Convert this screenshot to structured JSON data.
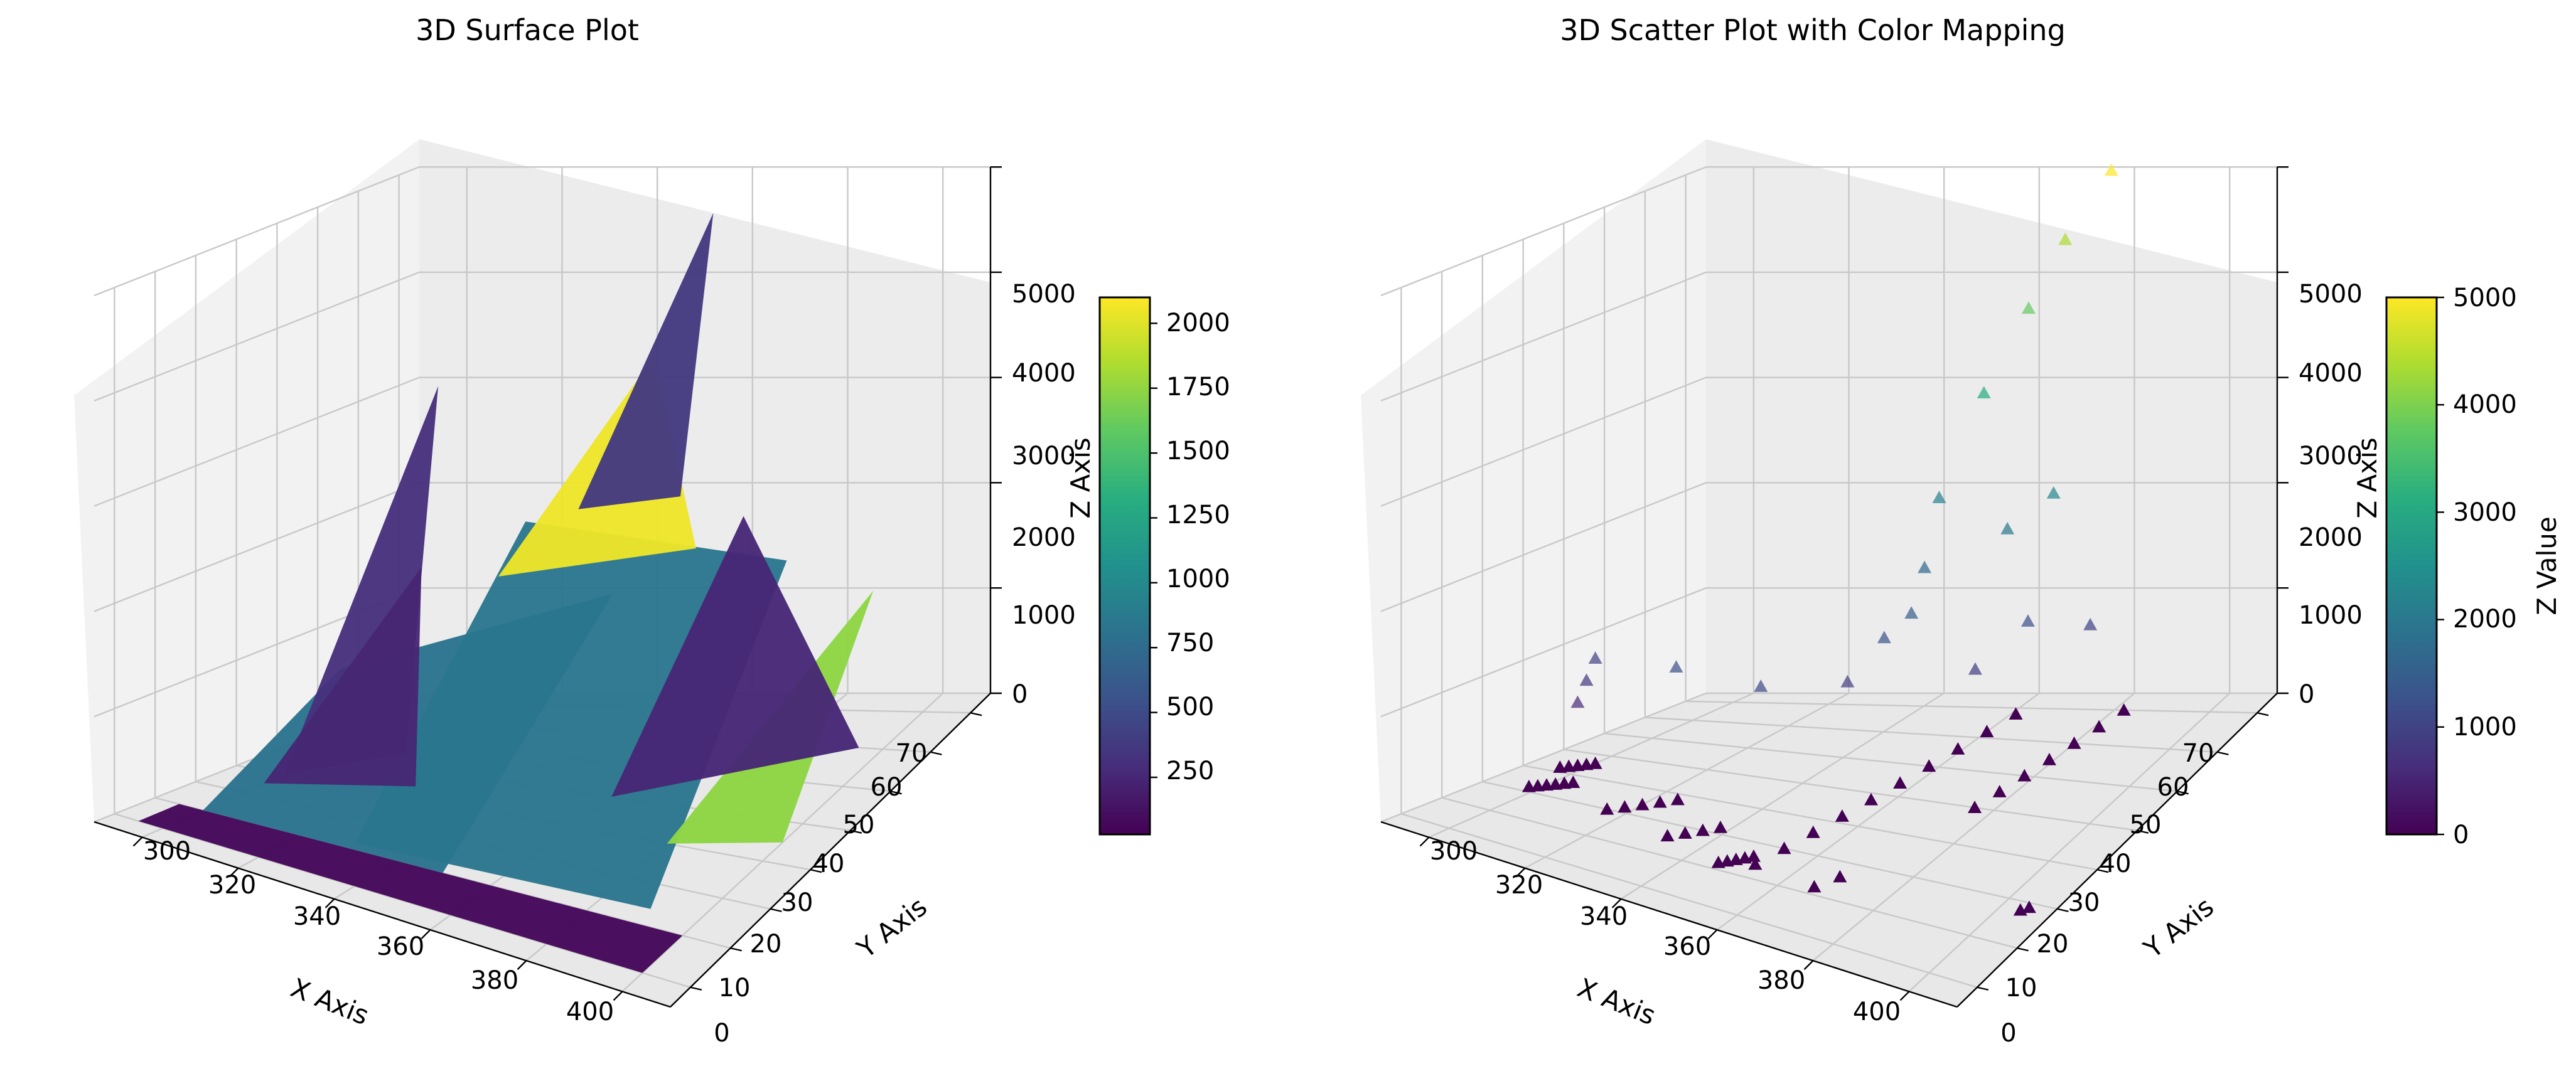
{
  "chart_data": [
    {
      "type": "surface",
      "title": "3D Surface Plot",
      "xlabel": "X Axis",
      "ylabel": "Y Axis",
      "zlabel": "Z Axis",
      "xlim": [
        290,
        410
      ],
      "ylim": [
        -5,
        75
      ],
      "zlim": [
        0,
        5000
      ],
      "xticks": [
        "300",
        "320",
        "340",
        "360",
        "380",
        "400"
      ],
      "yticks": [
        "0",
        "10",
        "20",
        "30",
        "40",
        "50",
        "60",
        "70"
      ],
      "zticks": [
        "0",
        "1000",
        "2000",
        "3000",
        "4000",
        "5000"
      ],
      "grid": true,
      "colormap": "viridis",
      "colorbar": {
        "label": "",
        "range": [
          30,
          2100
        ],
        "ticks": [
          "250",
          "500",
          "750",
          "1000",
          "1250",
          "1500",
          "1750",
          "2000"
        ]
      },
      "facets": [
        {
          "x": [
            295,
            400,
            400,
            295
          ],
          "y": [
            0,
            0,
            10,
            10
          ],
          "z": [
            0,
            0,
            0,
            0
          ],
          "value": 60
        },
        {
          "x": [
            300,
            350,
            362,
            305
          ],
          "y": [
            10,
            10,
            38,
            38
          ],
          "z": [
            0,
            0,
            2000,
            900
          ],
          "value": 820
        },
        {
          "x": [
            330,
            390,
            395,
            342
          ],
          "y": [
            12,
            14,
            42,
            40
          ],
          "z": [
            0,
            0,
            2400,
            2500
          ],
          "value": 850
        },
        {
          "x": [
            338,
            376,
            352
          ],
          "y": [
            38,
            42,
            60
          ],
          "z": [
            2000,
            2400,
            3600
          ],
          "value": 2050
        },
        {
          "x": [
            348,
            366,
            356
          ],
          "y": [
            46,
            50,
            70
          ],
          "z": [
            2500,
            2600,
            4700
          ],
          "value": 380
        },
        {
          "x": [
            300,
            322,
            311
          ],
          "y": [
            30,
            34,
            55
          ],
          "z": [
            0,
            300,
            3300
          ],
          "value": 320
        },
        {
          "x": [
            380,
            400,
            398
          ],
          "y": [
            30,
            35,
            60
          ],
          "z": [
            0,
            0,
            1500
          ],
          "value": 1750
        },
        {
          "x": [
            300,
            330,
            316
          ],
          "y": [
            25,
            27,
            45
          ],
          "z": [
            0,
            200,
            1800
          ],
          "value": 250
        },
        {
          "x": [
            360,
            395,
            375
          ],
          "y": [
            40,
            60,
            55
          ],
          "z": [
            0,
            0,
            2300
          ],
          "value": 260
        }
      ]
    },
    {
      "type": "scatter",
      "title": "3D Scatter Plot with Color Mapping",
      "xlabel": "X Axis",
      "ylabel": "Y Axis",
      "zlabel": "Z Axis",
      "xlim": [
        290,
        410
      ],
      "ylim": [
        -5,
        75
      ],
      "zlim": [
        0,
        5000
      ],
      "xticks": [
        "300",
        "320",
        "340",
        "360",
        "380",
        "400"
      ],
      "yticks": [
        "0",
        "10",
        "20",
        "30",
        "40",
        "50",
        "60",
        "70"
      ],
      "zticks": [
        "0",
        "1000",
        "2000",
        "3000",
        "4000",
        "5000"
      ],
      "grid": true,
      "marker": "triangle",
      "colormap": "viridis",
      "colorbar": {
        "label": "Z Value",
        "range": [
          0,
          5000
        ],
        "ticks": [
          "0",
          "1000",
          "2000",
          "3000",
          "4000",
          "5000"
        ]
      },
      "points": [
        {
          "x": 298,
          "y": 22,
          "z": 0
        },
        {
          "x": 299,
          "y": 23,
          "z": 0
        },
        {
          "x": 300,
          "y": 24,
          "z": 0
        },
        {
          "x": 301,
          "y": 25,
          "z": 0
        },
        {
          "x": 302,
          "y": 26,
          "z": 0
        },
        {
          "x": 303,
          "y": 27,
          "z": 0
        },
        {
          "x": 296,
          "y": 32,
          "z": 0
        },
        {
          "x": 297,
          "y": 33,
          "z": 0
        },
        {
          "x": 298,
          "y": 34,
          "z": 0
        },
        {
          "x": 299,
          "y": 35,
          "z": 0
        },
        {
          "x": 300,
          "y": 36,
          "z": 0
        },
        {
          "x": 316,
          "y": 20,
          "z": 0
        },
        {
          "x": 318,
          "y": 22,
          "z": 0
        },
        {
          "x": 320,
          "y": 24,
          "z": 0
        },
        {
          "x": 322,
          "y": 26,
          "z": 0
        },
        {
          "x": 324,
          "y": 28,
          "z": 0
        },
        {
          "x": 332,
          "y": 16,
          "z": 0
        },
        {
          "x": 334,
          "y": 18,
          "z": 0
        },
        {
          "x": 336,
          "y": 20,
          "z": 0
        },
        {
          "x": 338,
          "y": 22,
          "z": 0
        },
        {
          "x": 346,
          "y": 12,
          "z": 0
        },
        {
          "x": 347,
          "y": 13,
          "z": 0
        },
        {
          "x": 348,
          "y": 14,
          "z": 0
        },
        {
          "x": 349,
          "y": 15,
          "z": 0
        },
        {
          "x": 350,
          "y": 16,
          "z": 0
        },
        {
          "x": 352,
          "y": 14,
          "z": 0
        },
        {
          "x": 353,
          "y": 20,
          "z": 0
        },
        {
          "x": 354,
          "y": 26,
          "z": 0
        },
        {
          "x": 355,
          "y": 32,
          "z": 0
        },
        {
          "x": 356,
          "y": 38,
          "z": 0
        },
        {
          "x": 357,
          "y": 44,
          "z": 0
        },
        {
          "x": 358,
          "y": 50,
          "z": 0
        },
        {
          "x": 359,
          "y": 56,
          "z": 0
        },
        {
          "x": 360,
          "y": 62,
          "z": 0
        },
        {
          "x": 361,
          "y": 68,
          "z": 0
        },
        {
          "x": 366,
          "y": 12,
          "z": 0
        },
        {
          "x": 368,
          "y": 16,
          "z": 0
        },
        {
          "x": 376,
          "y": 40,
          "z": 0
        },
        {
          "x": 377,
          "y": 45,
          "z": 0
        },
        {
          "x": 378,
          "y": 50,
          "z": 0
        },
        {
          "x": 379,
          "y": 55,
          "z": 0
        },
        {
          "x": 380,
          "y": 60,
          "z": 0
        },
        {
          "x": 381,
          "y": 65,
          "z": 0
        },
        {
          "x": 382,
          "y": 70,
          "z": 0
        },
        {
          "x": 404,
          "y": 18,
          "z": 0
        },
        {
          "x": 405,
          "y": 19,
          "z": 0
        },
        {
          "x": 298,
          "y": 34,
          "z": 600
        },
        {
          "x": 299,
          "y": 35,
          "z": 800
        },
        {
          "x": 300,
          "y": 36,
          "z": 1000
        },
        {
          "x": 322,
          "y": 30,
          "z": 1200
        },
        {
          "x": 338,
          "y": 32,
          "z": 1100
        },
        {
          "x": 346,
          "y": 44,
          "z": 900
        },
        {
          "x": 352,
          "y": 46,
          "z": 1300
        },
        {
          "x": 356,
          "y": 48,
          "z": 1500
        },
        {
          "x": 366,
          "y": 52,
          "z": 900
        },
        {
          "x": 372,
          "y": 58,
          "z": 1200
        },
        {
          "x": 380,
          "y": 64,
          "z": 1000
        },
        {
          "x": 352,
          "y": 56,
          "z": 1700
        },
        {
          "x": 366,
          "y": 60,
          "z": 2000
        },
        {
          "x": 374,
          "y": 62,
          "z": 2300
        },
        {
          "x": 350,
          "y": 62,
          "z": 2200
        },
        {
          "x": 356,
          "y": 66,
          "z": 3100
        },
        {
          "x": 362,
          "y": 70,
          "z": 3800
        },
        {
          "x": 368,
          "y": 72,
          "z": 4400
        },
        {
          "x": 376,
          "y": 74,
          "z": 5000
        }
      ]
    }
  ]
}
